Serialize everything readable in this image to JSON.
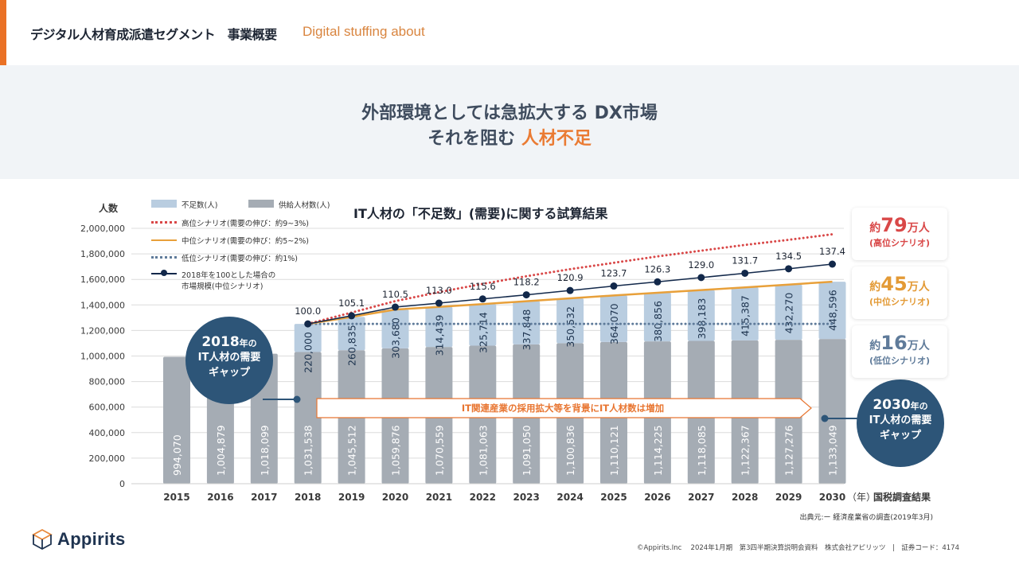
{
  "header": {
    "title": "デジタル人材育成派遣セグメント　事業概要",
    "subtitle": "Digital stuffing about"
  },
  "banner": {
    "line1": "外部環境としては急拡大する DX市場",
    "line2_prefix": "それを阻む ",
    "line2_highlight": "人材不足"
  },
  "colors": {
    "accent": "#ea7125",
    "shortage_bar": "#b9cde0",
    "supply_bar": "#a5acb4",
    "high_scenario": "#d94848",
    "mid_scenario": "#e8a03a",
    "low_scenario": "#5f7b9a",
    "market_line": "#12284a",
    "bubble": "#2d5578"
  },
  "chart_data": {
    "type": "bar",
    "title": "IT人材の「不足数」(需要)に関する試算結果",
    "ylabel": "人数",
    "xlabel": "（年）",
    "x_note": "国税調査結果",
    "ylim": [
      0,
      2000000
    ],
    "yticks": [
      "0",
      "200,000",
      "400,000",
      "600,000",
      "800,000",
      "1,000,000",
      "1,200,000",
      "1,400,000",
      "1,600,000",
      "1,800,000",
      "2,000,000"
    ],
    "ytick_values": [
      0,
      200000,
      400000,
      600000,
      800000,
      1000000,
      1200000,
      1400000,
      1600000,
      1800000,
      2000000
    ],
    "grid": true,
    "legend_position": "top-left",
    "categories": [
      "2015",
      "2016",
      "2017",
      "2018",
      "2019",
      "2020",
      "2021",
      "2022",
      "2023",
      "2024",
      "2025",
      "2026",
      "2027",
      "2028",
      "2029",
      "2030"
    ],
    "series": [
      {
        "name": "供給人材数(人)",
        "kind": "stacked-bar",
        "values": [
          994070,
          1004879,
          1018099,
          1031538,
          1045512,
          1059876,
          1070559,
          1081063,
          1091050,
          1100836,
          1110121,
          1114225,
          1118085,
          1122367,
          1127276,
          1133049
        ],
        "labels": [
          "994,070",
          "1,004,879",
          "1,018,099",
          "1,031,538",
          "1,045,512",
          "1,059,876",
          "1,070,559",
          "1,081,063",
          "1,091,050",
          "1,100,836",
          "1,110,121",
          "1,114,225",
          "1,118,085",
          "1,122,367",
          "1,127,276",
          "1,133,049"
        ]
      },
      {
        "name": "不足数(人)",
        "kind": "stacked-bar",
        "values": [
          null,
          null,
          null,
          220000,
          260835,
          303680,
          314439,
          325714,
          337848,
          350532,
          364070,
          380856,
          398183,
          415387,
          432270,
          448596
        ],
        "labels": [
          "",
          "",
          "",
          "220,000",
          "260,835",
          "303,680",
          "314,439",
          "325,714",
          "337,848",
          "350,532",
          "364,070",
          "380,856",
          "398,183",
          "415,387",
          "432,270",
          "448,596"
        ]
      },
      {
        "name": "高位シナリオ(需要の伸び：約9~3%)",
        "kind": "dotted-line",
        "values": [
          null,
          null,
          null,
          1251538,
          1340000,
          1430000,
          1500000,
          1565000,
          1625000,
          1680000,
          1730000,
          1780000,
          1825000,
          1870000,
          1910000,
          1953000
        ]
      },
      {
        "name": "中位シナリオ(需要の伸び：約5~2%)",
        "kind": "line",
        "values": [
          null,
          null,
          null,
          1251538,
          1306347,
          1363556,
          1384998,
          1406777,
          1428898,
          1451368,
          1474191,
          1495081,
          1516268,
          1537754,
          1559546,
          1581645
        ]
      },
      {
        "name": "低位シナリオ(需要の伸び：約1%)",
        "kind": "dotted-line",
        "values": [
          null,
          null,
          null,
          1251538,
          1251538,
          1251538,
          1251538,
          1251538,
          1251538,
          1251538,
          1251538,
          1251538,
          1251538,
          1251538,
          1251538,
          1251538
        ]
      },
      {
        "name": "2018年を100とした場合の市場規模(中位シナリオ)",
        "kind": "line-marker",
        "index_values": [
          null,
          null,
          null,
          100.0,
          105.1,
          110.5,
          113.0,
          115.6,
          118.2,
          120.9,
          123.7,
          126.3,
          129.0,
          131.7,
          134.5,
          137.4
        ],
        "labels": [
          "",
          "",
          "",
          "100.0",
          "105.1",
          "110.5",
          "113.0",
          "115.6",
          "118.2",
          "120.9",
          "123.7",
          "126.3",
          "129.0",
          "131.7",
          "134.5",
          "137.4"
        ]
      }
    ],
    "legend": [
      {
        "label": "不足数(人)",
        "swatch": "box-light"
      },
      {
        "label": "供給人材数(人)",
        "swatch": "box-gray"
      },
      {
        "label": "高位シナリオ(需要の伸び：約9~3%)",
        "swatch": "dots-red"
      },
      {
        "label": "中位シナリオ(需要の伸び：約5~2%)",
        "swatch": "line-orange"
      },
      {
        "label": "低位シナリオ(需要の伸び：約1%)",
        "swatch": "dots-blue"
      },
      {
        "label_line1": "2018年を100とした場合の",
        "label_line2": "市場規模(中位シナリオ)",
        "swatch": "line-marker"
      }
    ],
    "annotations": {
      "arrow_text": "IT関連産業の採用拡大等を背景にIT人材数は増加",
      "bubble_2018": {
        "year": "2018",
        "suffix": "年の",
        "line2": "IT人材の需要",
        "line3": "ギャップ"
      },
      "bubble_2030": {
        "year": "2030",
        "suffix": "年の",
        "line2": "IT人材の需要",
        "line3": "ギャップ"
      }
    },
    "scenario_cards": [
      {
        "prefix": "約",
        "number": "79",
        "unit": "万人",
        "label": "(高位シナリオ)",
        "color": "#d94848"
      },
      {
        "prefix": "約",
        "number": "45",
        "unit": "万人",
        "label": "(中位シナリオ)",
        "color": "#e39a35"
      },
      {
        "prefix": "約",
        "number": "16",
        "unit": "万人",
        "label": "(低位シナリオ)",
        "color": "#5f7b9a"
      }
    ],
    "source": "出典元:ー 経済産業省の調査(2019年3月)"
  },
  "footer": {
    "brand": "Appirits",
    "copyright": "©Appirits.Inc　 2024年1月期　第3四半期決算説明会資料　株式会社アピリッツ　|　証券コード：4174"
  }
}
